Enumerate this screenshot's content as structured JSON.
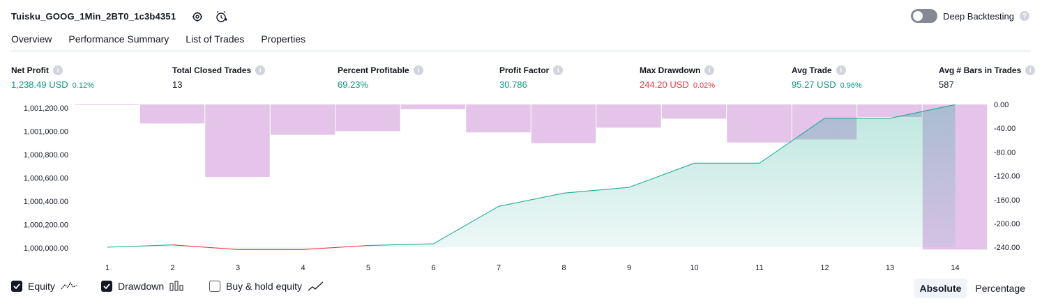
{
  "header": {
    "strategy_name": "Tuisku_GOOG_1Min_2BT0_1c3b4351",
    "deep_backtesting_label": "Deep Backtesting"
  },
  "tabs": [
    {
      "label": "Overview"
    },
    {
      "label": "Performance Summary"
    },
    {
      "label": "List of Trades"
    },
    {
      "label": "Properties"
    }
  ],
  "metrics": [
    {
      "label": "Net Profit",
      "value": "1,238.49 USD",
      "pct": "0.12%",
      "color": "green"
    },
    {
      "label": "Total Closed Trades",
      "value": "13",
      "pct": "",
      "color": "neutral"
    },
    {
      "label": "Percent Profitable",
      "value": "69.23%",
      "pct": "",
      "color": "green"
    },
    {
      "label": "Profit Factor",
      "value": "30.786",
      "pct": "",
      "color": "green"
    },
    {
      "label": "Max Drawdown",
      "value": "244.20 USD",
      "pct": "0.02%",
      "color": "red"
    },
    {
      "label": "Avg Trade",
      "value": "95.27 USD",
      "pct": "0.96%",
      "color": "green"
    },
    {
      "label": "Avg # Bars in Trades",
      "value": "587",
      "pct": "",
      "color": "neutral"
    }
  ],
  "chart_data": {
    "type": "line",
    "x_categories": [
      "1",
      "2",
      "3",
      "4",
      "5",
      "6",
      "7",
      "8",
      "9",
      "10",
      "11",
      "12",
      "13",
      "14"
    ],
    "left_axis": {
      "ticks": [
        "1,001,200.00",
        "1,001,000.00",
        "1,000,800.00",
        "1,000,600.00",
        "1,000,400.00",
        "1,000,200.00",
        "1,000,000.00"
      ],
      "range": [
        1000000,
        1001240
      ]
    },
    "right_axis": {
      "ticks": [
        "0.00",
        "-40.00",
        "-80.00",
        "-120.00",
        "-160.00",
        "-200.00",
        "-240.00"
      ],
      "range": [
        -240,
        0
      ]
    },
    "series": [
      {
        "name": "Equity",
        "type": "area",
        "color": "#22ab94",
        "loss_color": "#f23645",
        "values": [
          1000000,
          1000020,
          999980,
          999980,
          1000015,
          1000030,
          1000355,
          1000470,
          1000520,
          1000730,
          1000730,
          1001120,
          1001120,
          1001238
        ]
      },
      {
        "name": "Drawdown",
        "type": "bar",
        "color": "#ce93d8",
        "values": [
          -1,
          -32,
          -122,
          -51,
          -45,
          -8,
          -47,
          -65,
          -39,
          -24,
          -64,
          -59,
          -21,
          -244
        ]
      }
    ]
  },
  "legend": {
    "equity": "Equity",
    "drawdown": "Drawdown",
    "buy_hold": "Buy & hold equity"
  },
  "scale_toggle": {
    "absolute": "Absolute",
    "percentage": "Percentage"
  }
}
